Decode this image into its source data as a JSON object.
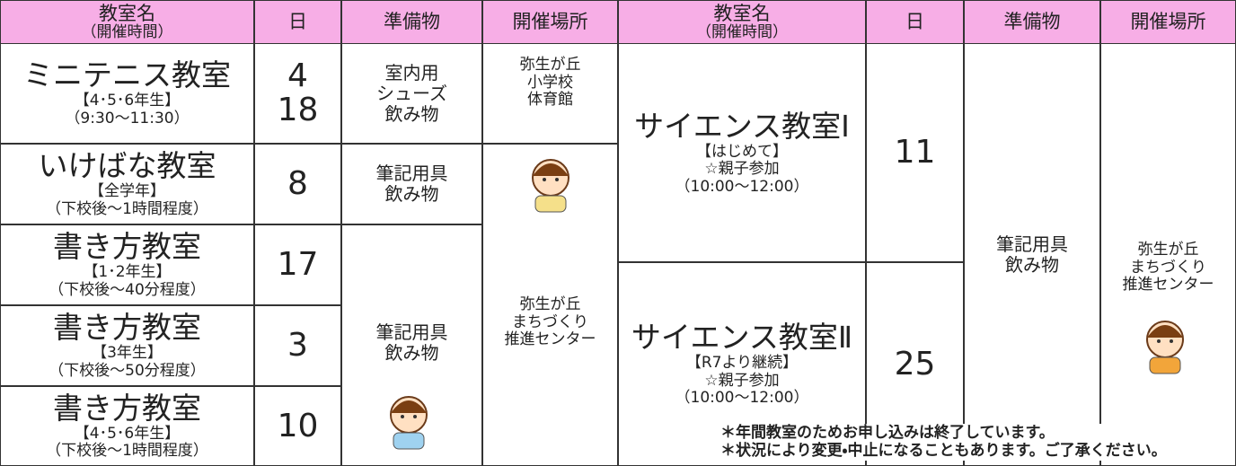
{
  "header": {
    "name": "教室名",
    "time": "（開催時間）",
    "day": "日",
    "items": "準備物",
    "place": "開催場所"
  },
  "left": {
    "classes": [
      {
        "name": "ミニテニス教室",
        "grade": "【4･5･6年生】",
        "time": "（9:30～11:30）",
        "days": [
          4,
          18
        ]
      },
      {
        "name": "いけばな教室",
        "grade": "【全学年】",
        "time": "（下校後～1時間程度）",
        "days": [
          8
        ]
      },
      {
        "name": "書き方教室",
        "grade": "【1･2年生】",
        "time": "（下校後～40分程度）",
        "days": [
          17
        ]
      },
      {
        "name": "書き方教室",
        "grade": "【3年生】",
        "time": "（下校後～50分程度）",
        "days": [
          3
        ]
      },
      {
        "name": "書き方教室",
        "grade": "【4･5･6年生】",
        "time": "（下校後～1時間程度）",
        "days": [
          10
        ]
      }
    ],
    "items": [
      [
        "室内用",
        "シューズ",
        "飲み物"
      ],
      [
        "筆記用具",
        "飲み物"
      ],
      [
        "筆記用具",
        "飲み物"
      ]
    ],
    "places": [
      [
        "弥生が丘",
        "小学校",
        "体育館"
      ],
      [
        "弥生が丘",
        "まちづくり",
        "推進センター"
      ]
    ]
  },
  "right": {
    "classes": [
      {
        "name": "サイエンス教室Ⅰ",
        "notes": [
          "【はじめて】",
          "☆親子参加",
          "（10:00～12:00）"
        ],
        "day": 11
      },
      {
        "name": "サイエンス教室Ⅱ",
        "notes": [
          "【R7より継続】",
          "☆親子参加",
          "（10:00～12:00）"
        ],
        "day": 25
      }
    ],
    "items": [
      "筆記用具",
      "飲み物"
    ],
    "place": [
      "弥生が丘",
      "まちづくり",
      "推進センター"
    ]
  },
  "notes": [
    "＊年間教室のためお申し込みは終了しています。",
    "＊状況により変更・中止になることもあります。ご了承ください。"
  ]
}
